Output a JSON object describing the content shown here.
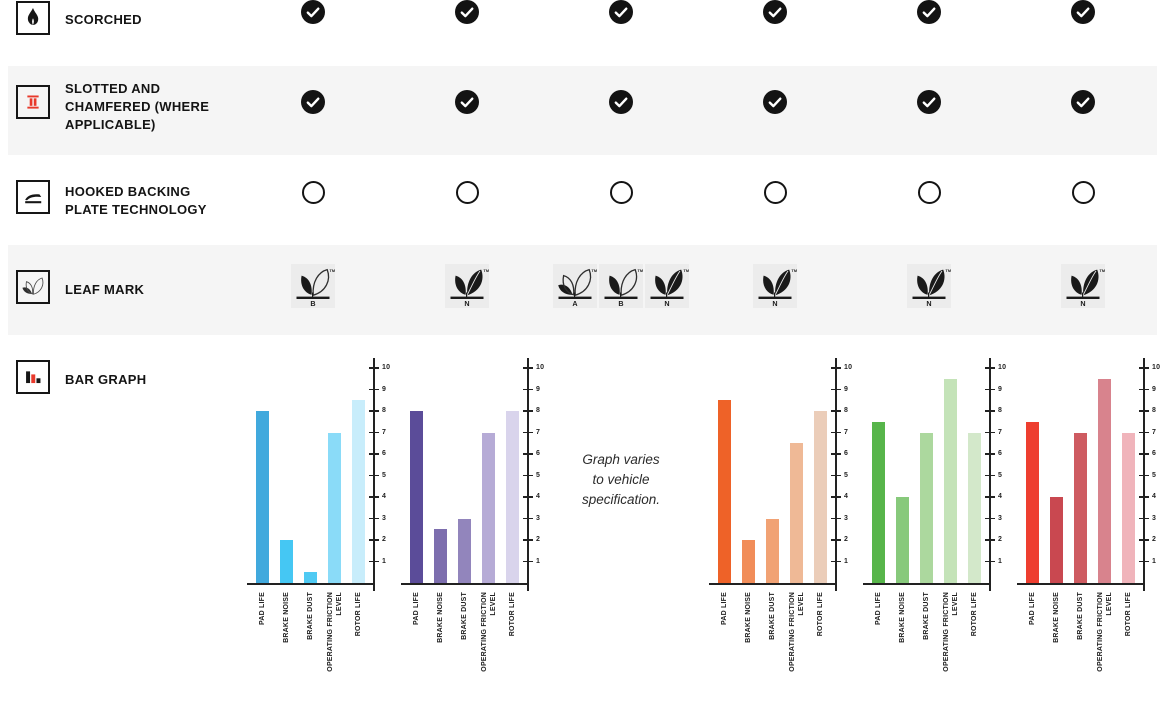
{
  "table": {
    "columns": 6,
    "rows": [
      {
        "id": "scorched",
        "label": "SCORCHED",
        "icon": "flame-icon",
        "cell_type": "check",
        "cells": [
          "yes",
          "yes",
          "yes",
          "yes",
          "yes",
          "yes"
        ],
        "shaded": false
      },
      {
        "id": "slotted-chamfered",
        "label": "SLOTTED AND CHAMFERED (WHERE APPLICABLE)",
        "icon": "slotted-pad-icon",
        "cell_type": "check",
        "cells": [
          "yes",
          "yes",
          "yes",
          "yes",
          "yes",
          "yes"
        ],
        "shaded": true
      },
      {
        "id": "hooked-backing-plate",
        "label": "HOOKED BACKING PLATE TECHNOLOGY",
        "icon": "backing-plate-icon",
        "cell_type": "circle",
        "cells": [
          "no",
          "no",
          "no",
          "no",
          "no",
          "no"
        ],
        "shaded": false
      },
      {
        "id": "leaf-mark",
        "label": "LEAF MARK",
        "icon": "leaf-icon",
        "cell_type": "leaf",
        "cells": [
          [
            "B"
          ],
          [
            "N"
          ],
          [
            "A",
            "B",
            "N"
          ],
          [
            "N"
          ],
          [
            "N"
          ],
          [
            "N"
          ]
        ],
        "shaded": true
      },
      {
        "id": "bar-graph",
        "label": "BAR GRAPH",
        "icon": "bar-chart-icon",
        "cell_type": "graph",
        "shaded": false
      }
    ]
  },
  "leaf_mark": {
    "tm_label": "TM"
  },
  "bar_graph_row": {
    "note_lines": [
      "Graph varies",
      "to vehicle",
      "specification."
    ],
    "note_column": 3
  },
  "colors": {
    "accent_red": "#E8392B",
    "ink": "#141414",
    "row_shade": "#f5f5f5"
  },
  "chart_data": [
    {
      "type": "bar",
      "column": 1,
      "palette": "blue",
      "title": "",
      "xlabel": "",
      "ylabel": "",
      "ylim": [
        0,
        10
      ],
      "yticks": [
        1,
        2,
        3,
        4,
        5,
        6,
        7,
        8,
        9,
        10
      ],
      "axis_side": "right",
      "grid": false,
      "categories": [
        "PAD LIFE",
        "BRAKE NOISE",
        "BRAKE DUST",
        "OPERATING FRICTION LEVEL",
        "ROTOR LIFE"
      ],
      "values": [
        8,
        2,
        0.5,
        7,
        8.5
      ],
      "colors": [
        "#41A9DD",
        "#45C7F3",
        "#4FCAF3",
        "#8ADBF8",
        "#C8EDFB"
      ]
    },
    {
      "type": "bar",
      "column": 2,
      "palette": "purple",
      "title": "",
      "xlabel": "",
      "ylabel": "",
      "ylim": [
        0,
        10
      ],
      "yticks": [
        1,
        2,
        3,
        4,
        5,
        6,
        7,
        8,
        9,
        10
      ],
      "axis_side": "right",
      "grid": false,
      "categories": [
        "PAD LIFE",
        "BRAKE NOISE",
        "BRAKE DUST",
        "OPERATING FRICTION LEVEL",
        "ROTOR LIFE"
      ],
      "values": [
        8,
        2.5,
        3,
        7,
        8
      ],
      "colors": [
        "#5B4C99",
        "#7D6EAE",
        "#9285BC",
        "#B6ABD6",
        "#D9D4EC"
      ]
    },
    {
      "type": "bar",
      "column": 4,
      "palette": "orange",
      "title": "",
      "xlabel": "",
      "ylabel": "",
      "ylim": [
        0,
        10
      ],
      "yticks": [
        1,
        2,
        3,
        4,
        5,
        6,
        7,
        8,
        9,
        10
      ],
      "axis_side": "right",
      "grid": false,
      "categories": [
        "PAD LIFE",
        "BRAKE NOISE",
        "BRAKE DUST",
        "OPERATING FRICTION LEVEL",
        "ROTOR LIFE"
      ],
      "values": [
        8.5,
        2,
        3,
        6.5,
        8
      ],
      "colors": [
        "#EE6228",
        "#F18D59",
        "#F1A274",
        "#EFB996",
        "#EBCDB9"
      ]
    },
    {
      "type": "bar",
      "column": 5,
      "palette": "green",
      "title": "",
      "xlabel": "",
      "ylabel": "",
      "ylim": [
        0,
        10
      ],
      "yticks": [
        1,
        2,
        3,
        4,
        5,
        6,
        7,
        8,
        9,
        10
      ],
      "axis_side": "right",
      "grid": false,
      "categories": [
        "PAD LIFE",
        "BRAKE NOISE",
        "BRAKE DUST",
        "OPERATING FRICTION LEVEL",
        "ROTOR LIFE"
      ],
      "values": [
        7.5,
        4,
        7,
        9.5,
        7
      ],
      "colors": [
        "#57B54A",
        "#87C97B",
        "#ACD89E",
        "#C4E3B8",
        "#D3E8CA"
      ]
    },
    {
      "type": "bar",
      "column": 6,
      "palette": "red",
      "title": "",
      "xlabel": "",
      "ylabel": "",
      "ylim": [
        0,
        10
      ],
      "yticks": [
        1,
        2,
        3,
        4,
        5,
        6,
        7,
        8,
        9,
        10
      ],
      "axis_side": "right",
      "grid": false,
      "categories": [
        "PAD LIFE",
        "BRAKE NOISE",
        "BRAKE DUST",
        "OPERATING FRICTION LEVEL",
        "ROTOR LIFE"
      ],
      "values": [
        7.5,
        4,
        7,
        9.5,
        7
      ],
      "colors": [
        "#EE3E2F",
        "#C94850",
        "#CE5B61",
        "#D8838D",
        "#F0B4BB"
      ]
    }
  ]
}
